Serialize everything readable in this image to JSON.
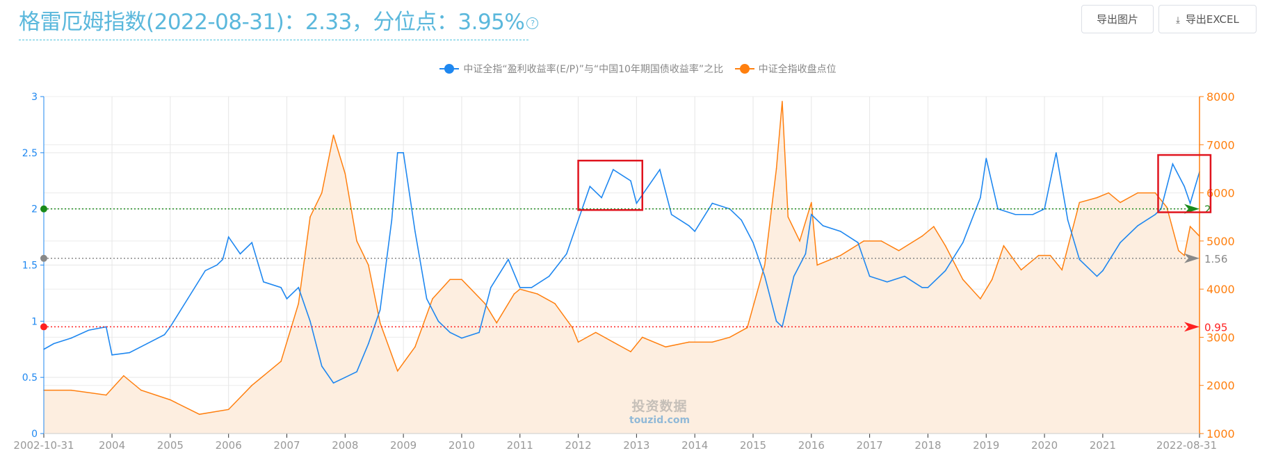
{
  "header": {
    "title": "格雷厄姆指数(2022-08-31)：2.33，分位点：3.95%",
    "help_icon": "question-circle-icon",
    "export_image_label": "导出图片",
    "export_excel_label": "导出EXCEL",
    "download_icon": "download-icon"
  },
  "watermark": {
    "line1": "投资数据",
    "line2": "touzid.com"
  },
  "chart_data": {
    "type": "line",
    "legend_placement": "top",
    "grid": true,
    "x_type": "time (decimal year)",
    "xlim": [
      2002.83,
      2022.66
    ],
    "x_tick_labels": [
      "2002-10-31",
      "2004",
      "2005",
      "2006",
      "2007",
      "2008",
      "2009",
      "2010",
      "2011",
      "2012",
      "2013",
      "2014",
      "2015",
      "2016",
      "2017",
      "2018",
      "2019",
      "2020",
      "2021",
      "2022-08-31"
    ],
    "x_tick_values": [
      2002.83,
      2004,
      2005,
      2006,
      2007,
      2008,
      2009,
      2010,
      2011,
      2012,
      2013,
      2014,
      2015,
      2016,
      2017,
      2018,
      2019,
      2020,
      2021,
      2022.66
    ],
    "y_left": {
      "lim": [
        0,
        3
      ],
      "ticks": [
        "0",
        "0.5",
        "1",
        "1.5",
        "2",
        "2.5",
        "3"
      ],
      "color": "#1e87f0"
    },
    "y_right": {
      "lim": [
        1000,
        8000
      ],
      "ticks": [
        "1000",
        "2000",
        "3000",
        "4000",
        "5000",
        "6000",
        "7000",
        "8000"
      ],
      "color": "#ff7f0e"
    },
    "series": [
      {
        "name": "中证全指“盈利收益率(E/P)”与“中国10年期国债收益率”之比",
        "axis": "left",
        "color": "#1e87f0",
        "x": [
          2002.83,
          2003.0,
          2003.3,
          2003.6,
          2003.9,
          2004.0,
          2004.3,
          2004.6,
          2004.9,
          2005.0,
          2005.3,
          2005.6,
          2005.8,
          2005.9,
          2006.0,
          2006.2,
          2006.4,
          2006.6,
          2006.9,
          2007.0,
          2007.2,
          2007.4,
          2007.6,
          2007.8,
          2008.0,
          2008.2,
          2008.4,
          2008.6,
          2008.8,
          2008.9,
          2009.0,
          2009.2,
          2009.4,
          2009.6,
          2009.8,
          2010.0,
          2010.3,
          2010.5,
          2010.8,
          2011.0,
          2011.2,
          2011.5,
          2011.8,
          2012.0,
          2012.2,
          2012.4,
          2012.6,
          2012.9,
          2013.0,
          2013.2,
          2013.4,
          2013.6,
          2013.9,
          2014.0,
          2014.3,
          2014.6,
          2014.8,
          2015.0,
          2015.2,
          2015.4,
          2015.5,
          2015.7,
          2015.9,
          2016.0,
          2016.2,
          2016.5,
          2016.8,
          2017.0,
          2017.3,
          2017.6,
          2017.9,
          2018.0,
          2018.3,
          2018.6,
          2018.9,
          2019.0,
          2019.2,
          2019.5,
          2019.8,
          2020.0,
          2020.2,
          2020.4,
          2020.6,
          2020.9,
          2021.0,
          2021.3,
          2021.6,
          2021.9,
          2022.0,
          2022.2,
          2022.4,
          2022.5,
          2022.66
        ],
        "values": [
          0.75,
          0.8,
          0.85,
          0.92,
          0.95,
          0.7,
          0.72,
          0.8,
          0.88,
          0.95,
          1.2,
          1.45,
          1.5,
          1.55,
          1.75,
          1.6,
          1.7,
          1.35,
          1.3,
          1.2,
          1.3,
          1.0,
          0.6,
          0.45,
          0.5,
          0.55,
          0.8,
          1.1,
          1.9,
          2.5,
          2.5,
          1.8,
          1.2,
          1.0,
          0.9,
          0.85,
          0.9,
          1.3,
          1.55,
          1.3,
          1.3,
          1.4,
          1.6,
          1.9,
          2.2,
          2.1,
          2.35,
          2.25,
          2.05,
          2.2,
          2.35,
          1.95,
          1.85,
          1.8,
          2.05,
          2.0,
          1.9,
          1.7,
          1.4,
          1.0,
          0.95,
          1.4,
          1.6,
          1.95,
          1.85,
          1.8,
          1.7,
          1.4,
          1.35,
          1.4,
          1.3,
          1.3,
          1.45,
          1.7,
          2.1,
          2.45,
          2.0,
          1.95,
          1.95,
          2.0,
          2.5,
          1.9,
          1.55,
          1.4,
          1.45,
          1.7,
          1.85,
          1.95,
          2.0,
          2.4,
          2.2,
          2.05,
          2.33
        ]
      },
      {
        "name": "中证全指收盘点位",
        "axis": "right",
        "color": "#ff7f0e",
        "area_fill": "#fdeee0",
        "x": [
          2002.83,
          2003.3,
          2003.9,
          2004.2,
          2004.5,
          2005.0,
          2005.5,
          2006.0,
          2006.4,
          2006.9,
          2007.2,
          2007.4,
          2007.6,
          2007.8,
          2008.0,
          2008.2,
          2008.4,
          2008.6,
          2008.9,
          2009.2,
          2009.5,
          2009.8,
          2010.0,
          2010.4,
          2010.6,
          2010.9,
          2011.0,
          2011.3,
          2011.6,
          2011.9,
          2012.0,
          2012.3,
          2012.6,
          2012.9,
          2013.1,
          2013.5,
          2013.9,
          2014.3,
          2014.6,
          2014.9,
          2015.2,
          2015.4,
          2015.5,
          2015.6,
          2015.8,
          2016.0,
          2016.1,
          2016.5,
          2016.9,
          2017.2,
          2017.5,
          2017.9,
          2018.1,
          2018.3,
          2018.6,
          2018.9,
          2019.1,
          2019.3,
          2019.6,
          2019.9,
          2020.1,
          2020.3,
          2020.6,
          2020.9,
          2021.1,
          2021.3,
          2021.6,
          2021.9,
          2022.1,
          2022.3,
          2022.4,
          2022.5,
          2022.66
        ],
        "values": [
          1900,
          1900,
          1800,
          2200,
          1900,
          1700,
          1400,
          1500,
          2000,
          2500,
          3700,
          5500,
          6000,
          7200,
          6400,
          5000,
          4500,
          3300,
          2300,
          2800,
          3800,
          4200,
          4200,
          3700,
          3300,
          3900,
          4000,
          3900,
          3700,
          3200,
          2900,
          3100,
          2900,
          2700,
          3000,
          2800,
          2900,
          2900,
          3000,
          3200,
          4500,
          6500,
          7900,
          5500,
          5000,
          5800,
          4500,
          4700,
          5000,
          5000,
          4800,
          5100,
          5300,
          4900,
          4200,
          3800,
          4200,
          4900,
          4400,
          4700,
          4700,
          4400,
          5800,
          5900,
          6000,
          5800,
          6000,
          6000,
          5700,
          4800,
          4700,
          5300,
          5100
        ]
      }
    ],
    "reference_lines": [
      {
        "value": 2,
        "label": "2",
        "color": "#1a8a1a"
      },
      {
        "value": 1.56,
        "label": "1.56",
        "color": "#888888"
      },
      {
        "value": 0.95,
        "label": "0.95",
        "color": "#ff2020"
      }
    ],
    "highlight_boxes": [
      {
        "x": [
          2012.0,
          2013.1
        ],
        "y": [
          1.99,
          2.43
        ],
        "color": "#e0141e"
      },
      {
        "x": [
          2021.95,
          2022.85
        ],
        "y": [
          1.97,
          2.48
        ],
        "color": "#e0141e"
      }
    ]
  }
}
